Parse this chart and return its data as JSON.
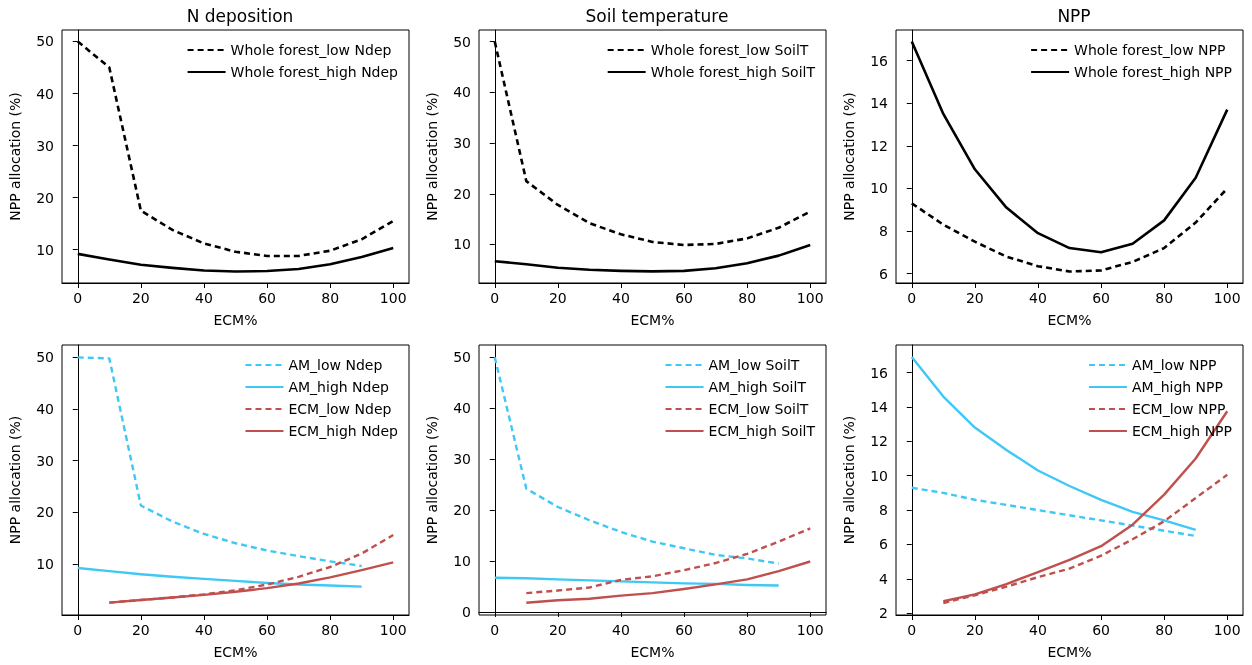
{
  "chart_data": [
    {
      "type": "line",
      "title": "N deposition",
      "xlabel": "ECM%",
      "ylabel": "NPP allocation (%)",
      "xlim": [
        -5,
        105
      ],
      "xticks": [
        0,
        20,
        40,
        60,
        80,
        100
      ],
      "ylim": [
        3.6,
        52.2
      ],
      "yticks": [
        10,
        20,
        30,
        40,
        50
      ],
      "legend": "top right",
      "x": [
        0,
        10,
        20,
        30,
        40,
        50,
        60,
        70,
        80,
        90,
        100
      ],
      "series": [
        {
          "name": "Whole forest_low Ndep",
          "color": "#000000",
          "line_style": "dashed",
          "values": [
            50,
            45,
            17.5,
            13.8,
            11.2,
            9.6,
            8.8,
            8.8,
            9.8,
            12,
            15.5
          ]
        },
        {
          "name": "Whole forest_high Ndep",
          "color": "#000000",
          "line_style": "solid",
          "values": [
            9.2,
            8.1,
            7.1,
            6.5,
            6.0,
            5.8,
            5.9,
            6.3,
            7.2,
            8.6,
            10.3
          ]
        }
      ]
    },
    {
      "type": "line",
      "title": "Soil temperature",
      "xlabel": "ECM%",
      "ylabel": "NPP allocation (%)",
      "xlim": [
        -5,
        105
      ],
      "xticks": [
        0,
        20,
        40,
        60,
        80,
        100
      ],
      "ylim": [
        2.4,
        52.3
      ],
      "yticks": [
        10,
        20,
        30,
        40,
        50
      ],
      "legend": "top right",
      "x": [
        0,
        10,
        20,
        30,
        40,
        50,
        60,
        70,
        80,
        90,
        100
      ],
      "series": [
        {
          "name": "Whole forest_low SoilT",
          "color": "#000000",
          "line_style": "dashed",
          "values": [
            50,
            22.5,
            17.8,
            14.2,
            12,
            10.5,
            9.9,
            10.1,
            11.2,
            13.3,
            16.5
          ]
        },
        {
          "name": "Whole forest_high SoilT",
          "color": "#000000",
          "line_style": "solid",
          "values": [
            6.7,
            6.1,
            5.4,
            5.0,
            4.8,
            4.7,
            4.8,
            5.3,
            6.3,
            7.8,
            9.9
          ]
        }
      ]
    },
    {
      "type": "line",
      "title": "NPP",
      "xlabel": "ECM%",
      "ylabel": "NPP allocation (%)",
      "xlim": [
        -5,
        105
      ],
      "xticks": [
        0,
        20,
        40,
        60,
        80,
        100
      ],
      "ylim": [
        5.56,
        17.44
      ],
      "yticks": [
        6,
        8,
        10,
        12,
        14,
        16
      ],
      "legend": "top right",
      "x": [
        0,
        10,
        20,
        30,
        40,
        50,
        60,
        70,
        80,
        90,
        100
      ],
      "series": [
        {
          "name": "Whole forest_low NPP",
          "color": "#000000",
          "line_style": "dashed",
          "values": [
            9.3,
            8.3,
            7.5,
            6.8,
            6.35,
            6.1,
            6.15,
            6.55,
            7.2,
            8.4,
            10.0
          ]
        },
        {
          "name": "Whole forest_high NPP",
          "color": "#000000",
          "line_style": "solid",
          "values": [
            16.9,
            13.5,
            10.9,
            9.1,
            7.9,
            7.2,
            7.0,
            7.4,
            8.5,
            10.5,
            13.7
          ]
        }
      ]
    },
    {
      "type": "line",
      "xlabel": "ECM%",
      "ylabel": "NPP allocation (%)",
      "xlim": [
        -5,
        105
      ],
      "xticks": [
        0,
        20,
        40,
        60,
        80,
        100
      ],
      "ylim": [
        0.1,
        52.4
      ],
      "yticks": [
        10,
        20,
        30,
        40,
        50
      ],
      "legend": "top right",
      "series": [
        {
          "name": "AM_low Ndep",
          "color": "#40c8f4",
          "line_style": "dashed",
          "x": [
            0,
            10,
            20,
            30,
            40,
            50,
            60,
            70,
            80,
            90
          ],
          "values": [
            50,
            49.8,
            21.3,
            18.2,
            15.8,
            14,
            12.6,
            11.5,
            10.5,
            9.6
          ]
        },
        {
          "name": "AM_high Ndep",
          "color": "#40c8f4",
          "line_style": "solid",
          "x": [
            0,
            10,
            20,
            30,
            40,
            50,
            60,
            70,
            80,
            90
          ],
          "values": [
            9.2,
            8.6,
            8.0,
            7.5,
            7.1,
            6.7,
            6.3,
            6.0,
            5.8,
            5.6
          ]
        },
        {
          "name": "ECM_low Ndep",
          "color": "#c0504d",
          "line_style": "dashed",
          "x": [
            10,
            20,
            30,
            40,
            50,
            60,
            70,
            80,
            90,
            100
          ],
          "values": [
            2.5,
            3.0,
            3.5,
            4.1,
            4.9,
            6.0,
            7.5,
            9.4,
            12.0,
            15.6
          ]
        },
        {
          "name": "ECM_high Ndep",
          "color": "#c0504d",
          "line_style": "solid",
          "x": [
            10,
            20,
            30,
            40,
            50,
            60,
            70,
            80,
            90,
            100
          ],
          "values": [
            2.5,
            3.0,
            3.5,
            4.0,
            4.6,
            5.3,
            6.2,
            7.4,
            8.8,
            10.3
          ]
        }
      ]
    },
    {
      "type": "line",
      "xlabel": "ECM%",
      "ylabel": "NPP allocation (%)",
      "xlim": [
        -5,
        105
      ],
      "xticks": [
        0,
        20,
        40,
        60,
        80,
        100
      ],
      "ylim": [
        -0.6,
        52.4
      ],
      "yticks": [
        0,
        10,
        20,
        30,
        40,
        50
      ],
      "legend": "top right",
      "series": [
        {
          "name": "AM_low SoilT",
          "color": "#40c8f4",
          "line_style": "dashed",
          "x": [
            0,
            10,
            20,
            30,
            40,
            50,
            60,
            70,
            80,
            90
          ],
          "values": [
            50,
            24.2,
            20.6,
            18.0,
            15.7,
            13.8,
            12.5,
            11.2,
            10.5,
            9.5
          ]
        },
        {
          "name": "AM_high SoilT",
          "color": "#40c8f4",
          "line_style": "solid",
          "x": [
            0,
            10,
            20,
            30,
            40,
            50,
            60,
            70,
            80,
            90
          ],
          "values": [
            6.7,
            6.6,
            6.4,
            6.2,
            6.0,
            5.8,
            5.6,
            5.5,
            5.3,
            5.2
          ]
        },
        {
          "name": "ECM_low SoilT",
          "color": "#c0504d",
          "line_style": "dashed",
          "x": [
            10,
            20,
            30,
            40,
            50,
            60,
            70,
            80,
            90,
            100
          ],
          "values": [
            3.7,
            4.2,
            4.8,
            6.3,
            7.0,
            8.2,
            9.6,
            11.4,
            13.8,
            16.4
          ]
        },
        {
          "name": "ECM_high SoilT",
          "color": "#c0504d",
          "line_style": "solid",
          "x": [
            10,
            20,
            30,
            40,
            50,
            60,
            70,
            80,
            90,
            100
          ],
          "values": [
            1.8,
            2.3,
            2.6,
            3.2,
            3.7,
            4.5,
            5.4,
            6.4,
            8.0,
            9.9
          ]
        }
      ]
    },
    {
      "type": "line",
      "xlabel": "ECM%",
      "ylabel": "NPP allocation (%)",
      "xlim": [
        -5,
        105
      ],
      "xticks": [
        0,
        20,
        40,
        60,
        80,
        100
      ],
      "ylim": [
        1.9,
        17.6
      ],
      "yticks": [
        2,
        4,
        6,
        8,
        10,
        12,
        14,
        16
      ],
      "legend": "top right",
      "series": [
        {
          "name": "AM_low NPP",
          "color": "#40c8f4",
          "line_style": "dashed",
          "x": [
            0,
            10,
            20,
            30,
            40,
            50,
            60,
            70,
            80,
            90
          ],
          "values": [
            9.3,
            9.0,
            8.6,
            8.3,
            8.0,
            7.7,
            7.4,
            7.1,
            6.8,
            6.5
          ]
        },
        {
          "name": "AM_high NPP",
          "color": "#40c8f4",
          "line_style": "solid",
          "x": [
            0,
            10,
            20,
            30,
            40,
            50,
            60,
            70,
            80,
            90
          ],
          "values": [
            16.9,
            14.6,
            12.8,
            11.5,
            10.3,
            9.4,
            8.6,
            7.9,
            7.4,
            6.85
          ]
        },
        {
          "name": "ECM_low NPP",
          "color": "#c0504d",
          "line_style": "dashed",
          "x": [
            10,
            20,
            30,
            40,
            50,
            60,
            70,
            80,
            90,
            100
          ],
          "values": [
            2.6,
            3.05,
            3.55,
            4.1,
            4.6,
            5.35,
            6.3,
            7.35,
            8.7,
            10.05
          ]
        },
        {
          "name": "ECM_high NPP",
          "color": "#c0504d",
          "line_style": "solid",
          "x": [
            10,
            20,
            30,
            40,
            50,
            60,
            70,
            80,
            90,
            100
          ],
          "values": [
            2.7,
            3.1,
            3.7,
            4.4,
            5.1,
            5.9,
            7.15,
            8.9,
            11.0,
            13.75
          ]
        }
      ]
    }
  ]
}
